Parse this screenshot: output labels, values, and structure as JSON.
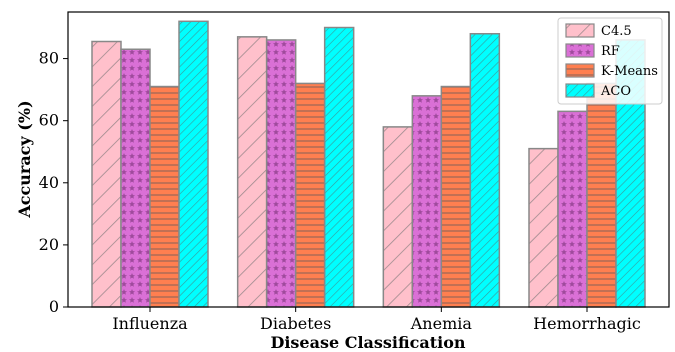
{
  "chart_data": {
    "type": "bar",
    "xlabel": "Disease Classification",
    "ylabel": "Accuracy (%)",
    "categories": [
      "Influenza",
      "Diabetes",
      "Anemia",
      "Hemorrhagic"
    ],
    "ylim": [
      0,
      95
    ],
    "yticks": [
      0,
      20,
      40,
      60,
      80
    ],
    "grid": false,
    "legend_position": "top-right",
    "series": [
      {
        "name": "C4.5",
        "values": [
          85.5,
          87.0,
          58.0,
          51.0
        ],
        "color": "#ffc0cb",
        "pattern": "diagonal-hatch"
      },
      {
        "name": "RF",
        "values": [
          83.0,
          86.0,
          68.0,
          63.0
        ],
        "color": "#da70d6",
        "pattern": "stars"
      },
      {
        "name": "K-Means",
        "values": [
          71.0,
          72.0,
          71.0,
          72.0
        ],
        "color": "#ff7f50",
        "pattern": "horizontal-lines"
      },
      {
        "name": "ACO",
        "values": [
          92.0,
          90.0,
          88.0,
          86.0
        ],
        "color": "#00ffff",
        "pattern": "diagonal-dense"
      }
    ]
  }
}
